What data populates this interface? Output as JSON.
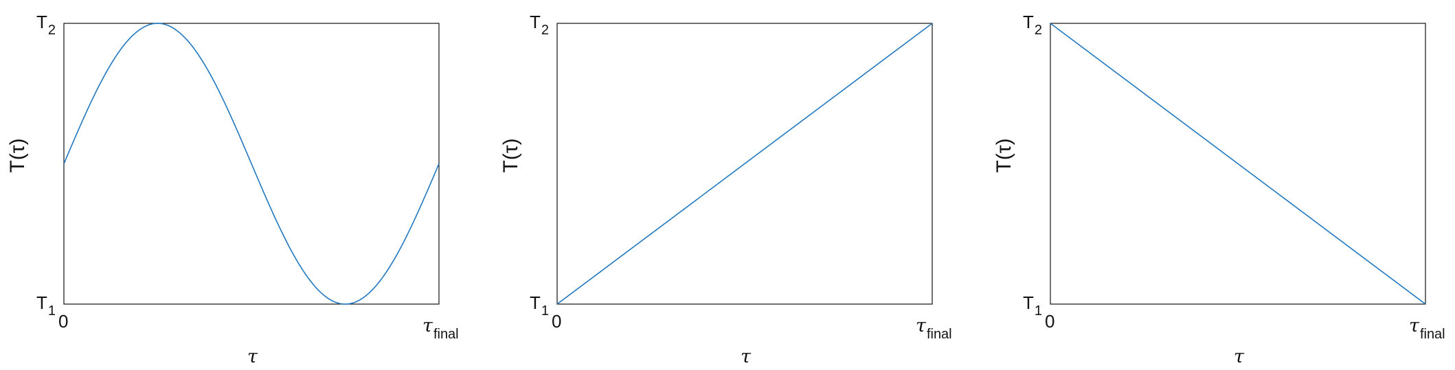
{
  "colors": {
    "line": "#1f77c0",
    "axes": "#111111",
    "background": "#ffffff"
  },
  "chart_data": [
    {
      "type": "line",
      "xlabel": "τ",
      "ylabel": "T(τ)",
      "x_ticks": [
        {
          "main": "0",
          "sub": ""
        },
        {
          "main": "τ",
          "sub": "final"
        }
      ],
      "y_ticks": [
        {
          "main": "T",
          "sub": "1"
        },
        {
          "main": "T",
          "sub": "2"
        }
      ],
      "xlim": [
        0,
        1
      ],
      "ylim": [
        0,
        1
      ],
      "grid": false,
      "legend": "none",
      "series": [
        {
          "function": "sine",
          "x": [
            0,
            0.25,
            0.5,
            0.75,
            1
          ],
          "y": [
            0.5,
            1,
            0.5,
            0,
            0.5
          ]
        }
      ]
    },
    {
      "type": "line",
      "xlabel": "τ",
      "ylabel": "T(τ)",
      "x_ticks": [
        {
          "main": "0",
          "sub": ""
        },
        {
          "main": "τ",
          "sub": "final"
        }
      ],
      "y_ticks": [
        {
          "main": "T",
          "sub": "1"
        },
        {
          "main": "T",
          "sub": "2"
        }
      ],
      "xlim": [
        0,
        1
      ],
      "ylim": [
        0,
        1
      ],
      "grid": false,
      "legend": "none",
      "series": [
        {
          "function": "linear",
          "x": [
            0,
            1
          ],
          "y": [
            0,
            1
          ]
        }
      ]
    },
    {
      "type": "line",
      "xlabel": "τ",
      "ylabel": "T(τ)",
      "x_ticks": [
        {
          "main": "0",
          "sub": ""
        },
        {
          "main": "τ",
          "sub": "final"
        }
      ],
      "y_ticks": [
        {
          "main": "T",
          "sub": "1"
        },
        {
          "main": "T",
          "sub": "2"
        }
      ],
      "xlim": [
        0,
        1
      ],
      "ylim": [
        0,
        1
      ],
      "grid": false,
      "legend": "none",
      "series": [
        {
          "function": "linear",
          "x": [
            0,
            1
          ],
          "y": [
            1,
            0
          ]
        }
      ]
    }
  ]
}
